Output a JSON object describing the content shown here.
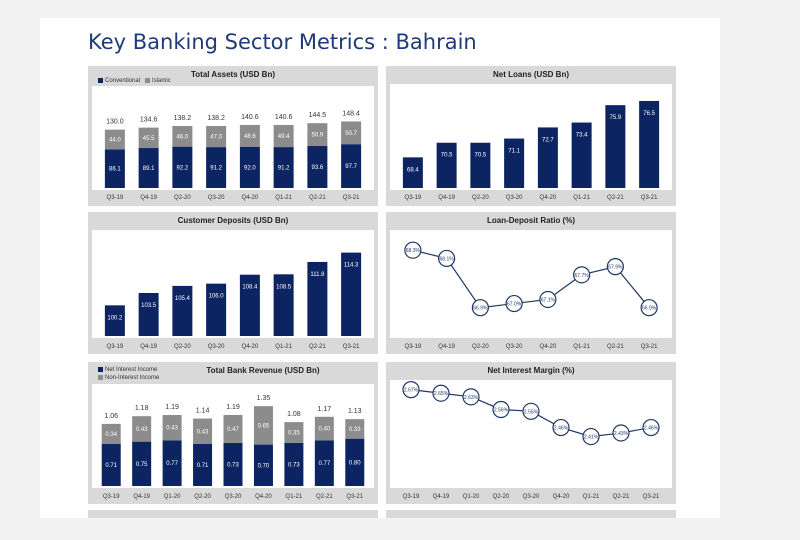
{
  "page_title": "Key Banking Sector Metrics : Bahrain",
  "colors": {
    "navy": "#0c2461",
    "grey": "#8c8c8c",
    "line": "#1f3864"
  },
  "chart_data": [
    {
      "id": "total-assets",
      "type": "bar",
      "stacked": true,
      "title": "Total Assets (USD Bn)",
      "categories": [
        "Q3-19",
        "Q4-19",
        "Q2-20",
        "Q3-20",
        "Q4-20",
        "Q1-21",
        "Q2-21",
        "Q3-21"
      ],
      "series": [
        {
          "name": "Conventional",
          "values": [
            86.1,
            89.1,
            92.2,
            91.2,
            92.0,
            91.2,
            93.6,
            97.7
          ]
        },
        {
          "name": "Islamic",
          "values": [
            44.0,
            45.5,
            46.0,
            47.0,
            48.6,
            49.4,
            50.9,
            50.7
          ]
        }
      ],
      "totals": [
        "130.0",
        "134.6",
        "138.2",
        "138.2",
        "140.6",
        "140.6",
        "144.5",
        "148.4"
      ],
      "ylim": [
        0,
        165
      ],
      "legend": "top-left"
    },
    {
      "id": "net-loans",
      "type": "bar",
      "title": "Net Loans (USD Bn)",
      "categories": [
        "Q3-19",
        "Q4-19",
        "Q2-20",
        "Q3-20",
        "Q4-20",
        "Q1-21",
        "Q2-21",
        "Q3-21"
      ],
      "values": [
        68.4,
        70.5,
        70.5,
        71.1,
        72.7,
        73.4,
        75.9,
        76.5
      ],
      "ylim": [
        64,
        77.5
      ]
    },
    {
      "id": "customer-deposits",
      "type": "bar",
      "title": "Customer Deposits (USD Bn)",
      "categories": [
        "Q3-19",
        "Q4-19",
        "Q2-20",
        "Q3-20",
        "Q4-20",
        "Q1-21",
        "Q2-21",
        "Q3-21"
      ],
      "values": [
        100.2,
        103.5,
        105.4,
        106.0,
        108.4,
        108.5,
        111.8,
        114.3
      ],
      "ylim": [
        92,
        115
      ]
    },
    {
      "id": "loan-deposit-ratio",
      "type": "line",
      "title": "Loan-Deposit Ratio (%)",
      "categories": [
        "Q3-19",
        "Q4-19",
        "Q2-20",
        "Q3-20",
        "Q4-20",
        "Q1-21",
        "Q2-21",
        "Q3-21"
      ],
      "values": [
        68.3,
        68.1,
        66.9,
        67.0,
        67.1,
        67.7,
        67.9,
        66.9
      ],
      "labels": [
        "68.3%",
        "68.1%",
        "66.9%",
        "67.0%",
        "67.1%",
        "67.7%",
        "67.9%",
        "66.9%"
      ],
      "ylim": [
        66.6,
        68.5
      ]
    },
    {
      "id": "total-bank-revenue",
      "type": "bar",
      "stacked": true,
      "title": "Total Bank Revenue (USD Bn)",
      "categories": [
        "Q3-19",
        "Q4-19",
        "Q1-20",
        "Q2-20",
        "Q3-20",
        "Q4-20",
        "Q1-21",
        "Q2-21",
        "Q3-21"
      ],
      "series": [
        {
          "name": "Net Interest Income",
          "values": [
            0.71,
            0.75,
            0.77,
            0.71,
            0.73,
            0.7,
            0.73,
            0.77,
            0.8
          ]
        },
        {
          "name": "Non-Interest Income",
          "values": [
            0.34,
            0.43,
            0.43,
            0.43,
            0.47,
            0.65,
            0.35,
            0.4,
            0.33
          ]
        }
      ],
      "value_labels": [
        [
          "0.71",
          "0.75",
          "0.77",
          "0.71",
          "0.73",
          "0.70",
          "0.73",
          "0.77",
          "0.80"
        ],
        [
          "0.34",
          "0.43",
          "0.43",
          "0.43",
          "0.47",
          "0.65",
          "0.35",
          "0.40",
          "0.33"
        ]
      ],
      "totals": [
        "1.06",
        "1.18",
        "1.19",
        "1.14",
        "1.19",
        "1.35",
        "1.08",
        "1.17",
        "1.13"
      ],
      "ylim": [
        0,
        1.42
      ],
      "legend": "top-left"
    },
    {
      "id": "net-interest-margin",
      "type": "line",
      "title": "Net Interest Margin (%)",
      "categories": [
        "Q3-19",
        "Q4-19",
        "Q1-20",
        "Q2-20",
        "Q3-20",
        "Q4-20",
        "Q1-21",
        "Q2-21",
        "Q3-21"
      ],
      "values": [
        2.67,
        2.65,
        2.63,
        2.56,
        2.55,
        2.46,
        2.41,
        2.43,
        2.46
      ],
      "labels": [
        "2.67%",
        "2.65%",
        "2.63%",
        "2.56%",
        "2.55%",
        "2.46%",
        "2.41%",
        "2.43%",
        "2.46%"
      ],
      "ylim": [
        2.38,
        2.69
      ]
    }
  ]
}
